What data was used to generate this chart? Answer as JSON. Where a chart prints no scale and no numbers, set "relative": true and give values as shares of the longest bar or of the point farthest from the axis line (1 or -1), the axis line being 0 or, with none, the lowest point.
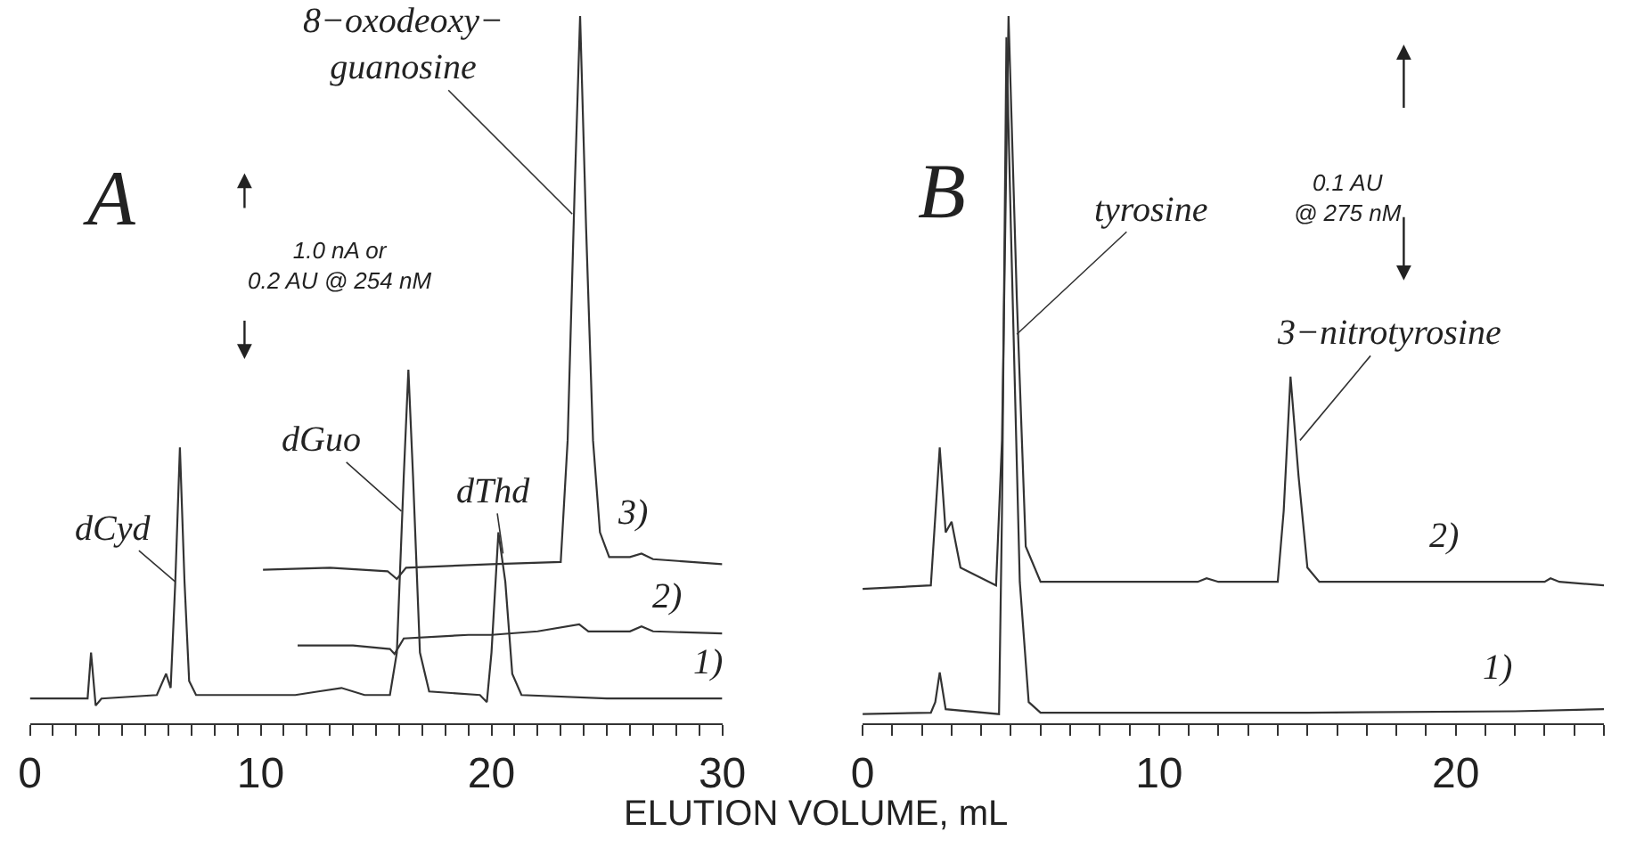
{
  "chart_data": [
    {
      "type": "line",
      "relative": true,
      "xlabel": "ELUTION VOLUME, mL",
      "legend": false,
      "marker": "none",
      "line_style": "solid",
      "tick_labels": "x",
      "xlim": [
        0,
        30
      ],
      "xticks": [
        0,
        {
          "value": 1,
          "label": null
        },
        {
          "value": 2,
          "label": null
        },
        {
          "value": 3,
          "label": null
        },
        {
          "value": 4,
          "label": null
        },
        {
          "value": 5,
          "label": null
        },
        {
          "value": 6,
          "label": null
        },
        {
          "value": 7,
          "label": null
        },
        {
          "value": 8,
          "label": null
        },
        {
          "value": 9,
          "label": null
        },
        10,
        {
          "value": 11,
          "label": null
        },
        {
          "value": 12,
          "label": null
        },
        {
          "value": 13,
          "label": null
        },
        {
          "value": 14,
          "label": null
        },
        {
          "value": 15,
          "label": null
        },
        {
          "value": 16,
          "label": null
        },
        {
          "value": 17,
          "label": null
        },
        {
          "value": 18,
          "label": null
        },
        {
          "value": 19,
          "label": null
        },
        20,
        {
          "value": 21,
          "label": null
        },
        {
          "value": 22,
          "label": null
        },
        {
          "value": 23,
          "label": null
        },
        {
          "value": 24,
          "label": null
        },
        {
          "value": 25,
          "label": null
        },
        {
          "value": 26,
          "label": null
        },
        {
          "value": 27,
          "label": null
        },
        {
          "value": 28,
          "label": null
        },
        {
          "value": 29,
          "label": null
        },
        30
      ],
      "series": [
        {
          "name": "1)",
          "color": "#333333",
          "x": [
            0,
            2.5,
            2.65,
            2.85,
            3.1,
            5.5,
            5.9,
            6.1,
            6.3,
            6.5,
            6.7,
            6.9,
            7.2,
            10,
            11.5,
            12.5,
            13.5,
            14.5,
            15.6,
            15.9,
            16.2,
            16.4,
            16.6,
            16.9,
            17.3,
            19.5,
            19.8,
            20.0,
            20.3,
            20.6,
            20.9,
            21.3,
            25,
            30
          ],
          "values": [
            0.035,
            0.035,
            0.1,
            0.025,
            0.035,
            0.04,
            0.07,
            0.05,
            0.2,
            0.39,
            0.2,
            0.06,
            0.04,
            0.04,
            0.04,
            0.045,
            0.05,
            0.04,
            0.04,
            0.1,
            0.35,
            0.5,
            0.35,
            0.1,
            0.045,
            0.04,
            0.03,
            0.1,
            0.27,
            0.2,
            0.07,
            0.04,
            0.035,
            0.035
          ]
        },
        {
          "name": "2)",
          "color": "#333333",
          "x": [
            11.6,
            14,
            15.6,
            15.8,
            16.2,
            19,
            20,
            22,
            23.8,
            24.2,
            26,
            26.5,
            27,
            30
          ],
          "values": [
            0.11,
            0.11,
            0.105,
            0.098,
            0.12,
            0.125,
            0.125,
            0.13,
            0.14,
            0.13,
            0.13,
            0.137,
            0.13,
            0.127
          ]
        },
        {
          "name": "3)",
          "color": "#333333",
          "x": [
            10.1,
            13,
            15.5,
            15.9,
            16.3,
            20,
            23,
            23.3,
            23.6,
            23.84,
            24.1,
            24.4,
            24.7,
            25.1,
            26,
            26.5,
            27,
            30
          ],
          "values": [
            0.217,
            0.22,
            0.215,
            0.204,
            0.22,
            0.225,
            0.228,
            0.4,
            0.75,
            1.0,
            0.7,
            0.4,
            0.27,
            0.235,
            0.235,
            0.24,
            0.232,
            0.225
          ]
        }
      ],
      "annotations": [
        "A",
        "1.0 nA or\n0.2 AU @ 254 nM",
        {
          "text": "8−oxodeoxy−\nguanosine",
          "x": 23.5,
          "y": 0.72
        },
        {
          "text": "dCyd",
          "x": 6.3,
          "y": 0.2
        },
        {
          "text": "dGuo",
          "x": 16.1,
          "y": 0.3
        },
        {
          "text": "dThd",
          "x": 20.5,
          "y": 0.24
        }
      ]
    },
    {
      "type": "line",
      "relative": true,
      "legend": false,
      "marker": "none",
      "line_style": "solid",
      "tick_labels": "x",
      "xlim": [
        0,
        25
      ],
      "xticks": [
        0,
        {
          "value": 1,
          "label": null
        },
        {
          "value": 2,
          "label": null
        },
        {
          "value": 3,
          "label": null
        },
        {
          "value": 4,
          "label": null
        },
        {
          "value": 5,
          "label": null
        },
        {
          "value": 6,
          "label": null
        },
        {
          "value": 7,
          "label": null
        },
        {
          "value": 8,
          "label": null
        },
        {
          "value": 9,
          "label": null
        },
        10,
        {
          "value": 11,
          "label": null
        },
        {
          "value": 12,
          "label": null
        },
        {
          "value": 13,
          "label": null
        },
        {
          "value": 14,
          "label": null
        },
        {
          "value": 15,
          "label": null
        },
        {
          "value": 16,
          "label": null
        },
        {
          "value": 17,
          "label": null
        },
        {
          "value": 18,
          "label": null
        },
        {
          "value": 19,
          "label": null
        },
        20,
        {
          "value": 21,
          "label": null
        },
        {
          "value": 22,
          "label": null
        },
        {
          "value": 23,
          "label": null
        },
        {
          "value": 24,
          "label": null
        },
        {
          "value": 25,
          "label": null
        }
      ],
      "series": [
        {
          "name": "1)",
          "color": "#333333",
          "x": [
            0,
            2.3,
            2.45,
            2.6,
            2.8,
            4.6,
            4.7,
            4.85,
            5.0,
            5.3,
            5.6,
            6.0,
            15,
            22,
            25
          ],
          "values": [
            0.013,
            0.015,
            0.03,
            0.072,
            0.02,
            0.013,
            0.3,
            0.97,
            0.7,
            0.2,
            0.03,
            0.015,
            0.015,
            0.017,
            0.02
          ]
        },
        {
          "name": "2)",
          "color": "#333333",
          "x": [
            0,
            2.3,
            2.6,
            2.8,
            3.0,
            3.3,
            4.5,
            4.7,
            4.92,
            5.2,
            5.5,
            6.0,
            11.3,
            11.6,
            12,
            14.0,
            14.2,
            14.43,
            14.7,
            15.0,
            15.4,
            23,
            23.2,
            23.5,
            25
          ],
          "values": [
            0.19,
            0.195,
            0.39,
            0.27,
            0.285,
            0.22,
            0.195,
            0.4,
            1.0,
            0.6,
            0.25,
            0.2,
            0.2,
            0.205,
            0.2,
            0.2,
            0.3,
            0.49,
            0.35,
            0.22,
            0.2,
            0.2,
            0.205,
            0.2,
            0.195
          ]
        }
      ],
      "annotations": [
        "B",
        "0.1 AU\n@ 275 nM",
        {
          "text": "tyrosine",
          "x": 5.2,
          "y": 0.55
        },
        {
          "text": "3−nitrotyrosine",
          "x": 14.75,
          "y": 0.4
        }
      ]
    }
  ]
}
